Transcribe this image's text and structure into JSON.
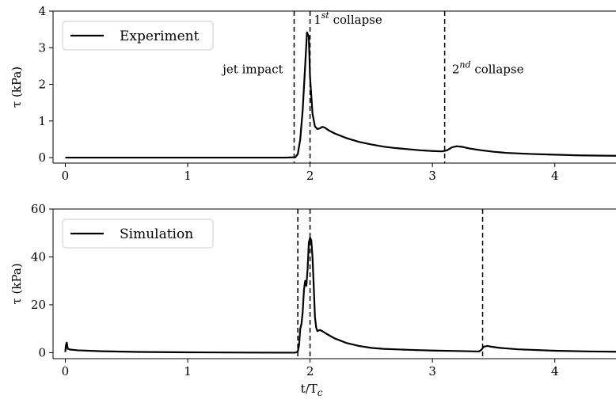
{
  "chart_data": [
    {
      "type": "line",
      "panel": "top",
      "xlim": [
        -0.1,
        4.5
      ],
      "ylim": [
        -0.15,
        4.0
      ],
      "xticks": [
        0,
        1,
        2,
        3,
        4
      ],
      "yticks": [
        0,
        1,
        2,
        3,
        4
      ],
      "xlabel": "",
      "ylabel": "τ (kPa)",
      "legend": {
        "placement": "top-left",
        "entry": "Experiment"
      },
      "series": [
        {
          "name": "Experiment",
          "color": "#000000",
          "x": [
            0.0,
            1.8,
            1.88,
            1.9,
            1.92,
            1.94,
            1.96,
            1.975,
            1.99,
            2.0,
            2.02,
            2.04,
            2.06,
            2.08,
            2.1,
            2.12,
            2.15,
            2.2,
            2.3,
            2.4,
            2.5,
            2.6,
            2.7,
            2.8,
            2.9,
            3.0,
            3.08,
            3.12,
            3.16,
            3.2,
            3.25,
            3.3,
            3.4,
            3.5,
            3.6,
            3.8,
            4.0,
            4.2,
            4.5
          ],
          "y": [
            0.0,
            0.0,
            0.01,
            0.1,
            0.5,
            1.3,
            2.5,
            3.42,
            3.3,
            2.2,
            1.2,
            0.85,
            0.78,
            0.8,
            0.84,
            0.82,
            0.75,
            0.66,
            0.53,
            0.43,
            0.36,
            0.3,
            0.26,
            0.23,
            0.2,
            0.18,
            0.17,
            0.2,
            0.28,
            0.31,
            0.29,
            0.25,
            0.2,
            0.16,
            0.13,
            0.1,
            0.08,
            0.06,
            0.05
          ]
        }
      ],
      "vlines": [
        1.87,
        2.0,
        3.1
      ],
      "annotations": [
        {
          "x": 2.03,
          "y": 3.65,
          "text": "1",
          "sup": "st",
          "suffix": " collapse"
        },
        {
          "x": 1.78,
          "y": 2.3,
          "text": "jet impact",
          "anchor": "end"
        },
        {
          "x": 3.16,
          "y": 2.3,
          "text": "2",
          "sup": "nd",
          "suffix": " collapse"
        }
      ]
    },
    {
      "type": "line",
      "panel": "bottom",
      "xlim": [
        -0.1,
        4.5
      ],
      "ylim": [
        -2.5,
        60
      ],
      "xticks": [
        0,
        1,
        2,
        3,
        4
      ],
      "yticks": [
        0,
        20,
        40,
        60
      ],
      "xlabel": "t/T",
      "xlabel_sub": "c",
      "ylabel": "τ (kPa)",
      "legend": {
        "placement": "top-left",
        "entry": "Simulation"
      },
      "series": [
        {
          "name": "Simulation",
          "color": "#000000",
          "x": [
            0.0,
            0.005,
            0.012,
            0.02,
            0.04,
            0.1,
            0.3,
            0.6,
            1.0,
            1.5,
            1.88,
            1.9,
            1.91,
            1.92,
            1.93,
            1.94,
            1.95,
            1.96,
            1.97,
            1.98,
            1.99,
            2.0,
            2.01,
            2.02,
            2.03,
            2.04,
            2.05,
            2.06,
            2.08,
            2.1,
            2.13,
            2.2,
            2.3,
            2.4,
            2.5,
            2.6,
            2.8,
            3.0,
            3.2,
            3.38,
            3.4,
            3.42,
            3.45,
            3.48,
            3.55,
            3.7,
            4.0,
            4.3,
            4.5
          ],
          "y": [
            0.3,
            3.0,
            4.2,
            1.6,
            1.3,
            1.0,
            0.6,
            0.3,
            0.15,
            0.05,
            0.0,
            0.5,
            3.0,
            10.0,
            12.0,
            17.0,
            26.0,
            30.0,
            28.0,
            35.0,
            46.0,
            48.0,
            47.0,
            40.0,
            28.0,
            15.0,
            10.5,
            9.0,
            9.5,
            9.0,
            8.0,
            6.0,
            4.0,
            2.8,
            2.0,
            1.6,
            1.2,
            0.9,
            0.7,
            0.5,
            1.2,
            2.5,
            2.8,
            2.5,
            2.0,
            1.4,
            0.8,
            0.5,
            0.4
          ]
        }
      ],
      "vlines": [
        1.9,
        2.0,
        3.41
      ],
      "annotations": []
    }
  ]
}
